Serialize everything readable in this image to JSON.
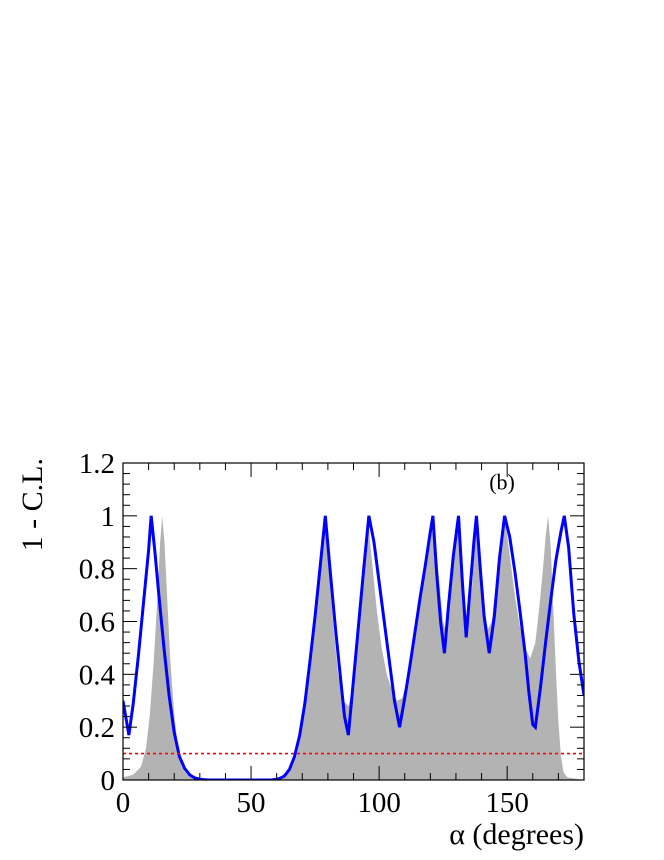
{
  "chart_data": {
    "type": "area",
    "panel_label": "(b)",
    "xlabel": "α (degrees)",
    "ylabel": "1 - C.L.",
    "xlim": [
      0,
      180
    ],
    "ylim": [
      0,
      1.2
    ],
    "x_ticks": [
      0,
      50,
      100,
      150
    ],
    "x_tick_labels": [
      "0",
      "50",
      "100",
      "150"
    ],
    "y_ticks": [
      0,
      0.2,
      0.4,
      0.6,
      0.8,
      1,
      1.2
    ],
    "y_tick_labels": [
      "0",
      "0.2",
      "0.4",
      "0.6",
      "0.8",
      "1",
      "1.2"
    ],
    "grid": false,
    "reference_line": {
      "y": 0.1,
      "color": "#ff0000",
      "style": "dotted"
    },
    "series": [
      {
        "kind": "filled",
        "color": "#b3b3b3",
        "points": [
          [
            0,
            0.01
          ],
          [
            4,
            0.02
          ],
          [
            7,
            0.05
          ],
          [
            9,
            0.12
          ],
          [
            10.5,
            0.25
          ],
          [
            12,
            0.45
          ],
          [
            13.5,
            0.7
          ],
          [
            14.5,
            0.9
          ],
          [
            15.3,
            1.0
          ],
          [
            16.2,
            0.9
          ],
          [
            17.2,
            0.7
          ],
          [
            18.5,
            0.45
          ],
          [
            20,
            0.25
          ],
          [
            21.5,
            0.12
          ],
          [
            23,
            0.05
          ],
          [
            25,
            0.02
          ],
          [
            28,
            0.005
          ],
          [
            32,
            0.0
          ],
          [
            58,
            0.0
          ],
          [
            62,
            0.005
          ],
          [
            64,
            0.02
          ],
          [
            66,
            0.05
          ],
          [
            68,
            0.1
          ],
          [
            70,
            0.2
          ],
          [
            72,
            0.35
          ],
          [
            74,
            0.5
          ],
          [
            76,
            0.7
          ],
          [
            78,
            0.9
          ],
          [
            79,
            1.0
          ],
          [
            80,
            0.85
          ],
          [
            82,
            0.6
          ],
          [
            84,
            0.4
          ],
          [
            86,
            0.3
          ],
          [
            88,
            0.28
          ],
          [
            90,
            0.35
          ],
          [
            92,
            0.55
          ],
          [
            94,
            0.8
          ],
          [
            95.5,
            1.0
          ],
          [
            97,
            0.85
          ],
          [
            99,
            0.65
          ],
          [
            101,
            0.5
          ],
          [
            103,
            0.4
          ],
          [
            105,
            0.34
          ],
          [
            107,
            0.3
          ],
          [
            109,
            0.31
          ],
          [
            111,
            0.38
          ],
          [
            114,
            0.55
          ],
          [
            117,
            0.75
          ],
          [
            119,
            0.9
          ],
          [
            121,
            1.0
          ],
          [
            123,
            0.8
          ],
          [
            125,
            0.6
          ],
          [
            126.5,
            0.55
          ],
          [
            128,
            0.7
          ],
          [
            130,
            0.9
          ],
          [
            131,
            1.0
          ],
          [
            132.5,
            0.8
          ],
          [
            134,
            0.62
          ],
          [
            135,
            0.6
          ],
          [
            136.5,
            0.75
          ],
          [
            138,
            1.0
          ],
          [
            139.5,
            0.8
          ],
          [
            141,
            0.65
          ],
          [
            142.5,
            0.57
          ],
          [
            144,
            0.6
          ],
          [
            146,
            0.78
          ],
          [
            148,
            0.95
          ],
          [
            149,
            1.0
          ],
          [
            151,
            0.85
          ],
          [
            153,
            0.7
          ],
          [
            155,
            0.58
          ],
          [
            157,
            0.5
          ],
          [
            159,
            0.46
          ],
          [
            161,
            0.52
          ],
          [
            162.5,
            0.65
          ],
          [
            164,
            0.8
          ],
          [
            165,
            0.92
          ],
          [
            166,
            1.0
          ],
          [
            167,
            0.88
          ],
          [
            168,
            0.65
          ],
          [
            169,
            0.42
          ],
          [
            170,
            0.22
          ],
          [
            171,
            0.09
          ],
          [
            172,
            0.03
          ],
          [
            173.5,
            0.01
          ],
          [
            180,
            0.0
          ]
        ]
      },
      {
        "kind": "line",
        "color": "#0000ff",
        "points": [
          [
            0,
            0.3
          ],
          [
            2.3,
            0.17
          ],
          [
            4,
            0.29
          ],
          [
            6,
            0.47
          ],
          [
            8,
            0.67
          ],
          [
            10,
            0.87
          ],
          [
            11,
            1.0
          ],
          [
            12.5,
            0.86
          ],
          [
            14,
            0.7
          ],
          [
            16,
            0.5
          ],
          [
            18,
            0.32
          ],
          [
            20,
            0.18
          ],
          [
            22,
            0.09
          ],
          [
            24,
            0.045
          ],
          [
            26,
            0.02
          ],
          [
            28,
            0.008
          ],
          [
            30,
            0.003
          ],
          [
            33,
            0.0
          ],
          [
            58,
            0.0
          ],
          [
            61,
            0.005
          ],
          [
            63,
            0.015
          ],
          [
            65,
            0.04
          ],
          [
            67,
            0.09
          ],
          [
            69,
            0.17
          ],
          [
            71,
            0.29
          ],
          [
            73,
            0.45
          ],
          [
            75,
            0.62
          ],
          [
            77,
            0.81
          ],
          [
            79,
            1.0
          ],
          [
            81,
            0.78
          ],
          [
            83,
            0.57
          ],
          [
            85,
            0.38
          ],
          [
            86.5,
            0.24
          ],
          [
            88,
            0.17
          ],
          [
            90,
            0.38
          ],
          [
            92,
            0.59
          ],
          [
            94,
            0.8
          ],
          [
            96,
            1.0
          ],
          [
            98,
            0.9
          ],
          [
            100,
            0.75
          ],
          [
            102,
            0.6
          ],
          [
            104,
            0.45
          ],
          [
            106,
            0.3
          ],
          [
            108,
            0.2
          ],
          [
            110,
            0.31
          ],
          [
            112,
            0.43
          ],
          [
            114,
            0.56
          ],
          [
            116,
            0.69
          ],
          [
            118,
            0.81
          ],
          [
            120,
            0.94
          ],
          [
            121,
            1.0
          ],
          [
            122.5,
            0.78
          ],
          [
            124,
            0.6
          ],
          [
            125.5,
            0.48
          ],
          [
            127,
            0.65
          ],
          [
            129,
            0.85
          ],
          [
            131,
            1.0
          ],
          [
            132.5,
            0.75
          ],
          [
            134,
            0.54
          ],
          [
            135.5,
            0.72
          ],
          [
            137,
            0.9
          ],
          [
            138,
            1.0
          ],
          [
            139.5,
            0.8
          ],
          [
            141,
            0.62
          ],
          [
            143,
            0.48
          ],
          [
            145,
            0.62
          ],
          [
            147,
            0.84
          ],
          [
            149,
            1.0
          ],
          [
            151,
            0.92
          ],
          [
            153,
            0.79
          ],
          [
            155,
            0.64
          ],
          [
            157,
            0.48
          ],
          [
            158.5,
            0.33
          ],
          [
            160,
            0.21
          ],
          [
            161,
            0.2
          ],
          [
            163,
            0.35
          ],
          [
            165,
            0.52
          ],
          [
            167,
            0.68
          ],
          [
            169,
            0.83
          ],
          [
            171,
            0.94
          ],
          [
            172.3,
            1.0
          ],
          [
            174,
            0.88
          ],
          [
            176,
            0.63
          ],
          [
            178,
            0.45
          ],
          [
            180,
            0.32
          ]
        ]
      }
    ]
  }
}
